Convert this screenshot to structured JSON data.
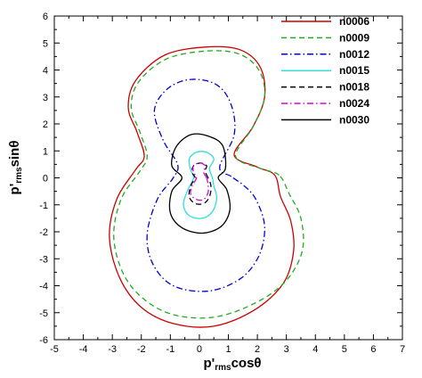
{
  "chart_data": {
    "type": "line",
    "title": "",
    "xlabel": {
      "main": "p'",
      "sub": "rms",
      "tail": "cosθ"
    },
    "ylabel": {
      "main": "p'",
      "sub": "rms",
      "tail": "sinθ"
    },
    "xlim": [
      -5,
      7
    ],
    "ylim": [
      -6,
      6
    ],
    "xticks": [
      "-5",
      "-4",
      "-3",
      "-2",
      "-1",
      "0",
      "1",
      "2",
      "3",
      "4",
      "5",
      "6",
      "7"
    ],
    "yticks": [
      "-6",
      "-5",
      "-4",
      "-3",
      "-2",
      "-1",
      "0",
      "1",
      "2",
      "3",
      "4",
      "5",
      "6"
    ],
    "grid": false,
    "legend_position": "top-right",
    "series": [
      {
        "name": "n0006",
        "color": "#cc0000",
        "dash": "solid",
        "points": [
          [
            2.6,
            0.1
          ],
          [
            2.0,
            0.4
          ],
          [
            1.2,
            0.85
          ],
          [
            1.85,
            1.9
          ],
          [
            2.25,
            3.0
          ],
          [
            2.1,
            4.1
          ],
          [
            1.4,
            4.75
          ],
          [
            0.2,
            4.85
          ],
          [
            -1.2,
            4.55
          ],
          [
            -2.2,
            3.6
          ],
          [
            -2.45,
            2.6
          ],
          [
            -2.15,
            1.7
          ],
          [
            -1.9,
            0.8
          ],
          [
            -2.2,
            0.3
          ],
          [
            -2.85,
            -0.8
          ],
          [
            -3.1,
            -2.2
          ],
          [
            -2.75,
            -3.7
          ],
          [
            -2.0,
            -4.8
          ],
          [
            -0.9,
            -5.4
          ],
          [
            0.5,
            -5.5
          ],
          [
            1.9,
            -4.9
          ],
          [
            2.9,
            -3.9
          ],
          [
            3.25,
            -2.7
          ],
          [
            3.15,
            -1.6
          ],
          [
            2.8,
            -0.7
          ],
          [
            2.6,
            0.1
          ]
        ]
      },
      {
        "name": "n0009",
        "color": "#22aa22",
        "dash": "6,4",
        "points": [
          [
            2.75,
            0.1
          ],
          [
            2.1,
            0.35
          ],
          [
            1.25,
            0.8
          ],
          [
            1.85,
            1.9
          ],
          [
            2.25,
            3.0
          ],
          [
            2.05,
            4.0
          ],
          [
            1.35,
            4.6
          ],
          [
            0.2,
            4.7
          ],
          [
            -1.15,
            4.4
          ],
          [
            -2.1,
            3.55
          ],
          [
            -2.35,
            2.6
          ],
          [
            -2.05,
            1.7
          ],
          [
            -1.8,
            0.8
          ],
          [
            -2.05,
            0.25
          ],
          [
            -2.7,
            -0.8
          ],
          [
            -2.95,
            -2.2
          ],
          [
            -2.6,
            -3.6
          ],
          [
            -1.85,
            -4.55
          ],
          [
            -0.8,
            -5.1
          ],
          [
            0.6,
            -5.15
          ],
          [
            2.0,
            -4.6
          ],
          [
            3.0,
            -3.8
          ],
          [
            3.55,
            -2.7
          ],
          [
            3.5,
            -1.5
          ],
          [
            3.1,
            -0.6
          ],
          [
            2.75,
            0.1
          ]
        ]
      },
      {
        "name": "n0012",
        "color": "#0000cc",
        "dash": "7,3,1.5,3",
        "points": [
          [
            1.1,
            0.05
          ],
          [
            0.7,
            0.4
          ],
          [
            1.2,
            1.6
          ],
          [
            1.1,
            2.7
          ],
          [
            0.6,
            3.45
          ],
          [
            -0.3,
            3.65
          ],
          [
            -1.1,
            3.3
          ],
          [
            -1.55,
            2.5
          ],
          [
            -1.25,
            1.4
          ],
          [
            -0.75,
            0.5
          ],
          [
            -0.9,
            0.0
          ],
          [
            -1.45,
            -0.8
          ],
          [
            -1.8,
            -2.1
          ],
          [
            -1.6,
            -3.2
          ],
          [
            -0.9,
            -4.0
          ],
          [
            0.3,
            -4.2
          ],
          [
            1.4,
            -3.75
          ],
          [
            2.05,
            -2.9
          ],
          [
            2.25,
            -1.8
          ],
          [
            1.95,
            -0.8
          ],
          [
            1.55,
            -0.3
          ],
          [
            1.1,
            0.05
          ]
        ]
      },
      {
        "name": "n0015",
        "color": "#33dddd",
        "dash": "solid",
        "points": [
          [
            0.45,
            0.0
          ],
          [
            0.35,
            0.35
          ],
          [
            0.5,
            0.7
          ],
          [
            0.25,
            0.95
          ],
          [
            -0.1,
            0.95
          ],
          [
            -0.35,
            0.7
          ],
          [
            -0.3,
            0.3
          ],
          [
            -0.2,
            0.0
          ],
          [
            -0.4,
            -0.45
          ],
          [
            -0.55,
            -1.0
          ],
          [
            -0.35,
            -1.4
          ],
          [
            0.1,
            -1.5
          ],
          [
            0.45,
            -1.25
          ],
          [
            0.6,
            -0.75
          ],
          [
            0.5,
            -0.3
          ],
          [
            0.45,
            0.0
          ]
        ]
      },
      {
        "name": "n0018",
        "color": "#000000",
        "dash": "6,4",
        "points": [
          [
            0.3,
            0.0
          ],
          [
            0.2,
            0.25
          ],
          [
            0.25,
            0.45
          ],
          [
            0.05,
            0.55
          ],
          [
            -0.2,
            0.45
          ],
          [
            -0.25,
            0.2
          ],
          [
            -0.15,
            0.0
          ],
          [
            -0.3,
            -0.3
          ],
          [
            -0.35,
            -0.7
          ],
          [
            -0.15,
            -0.95
          ],
          [
            0.15,
            -0.95
          ],
          [
            0.35,
            -0.7
          ],
          [
            0.4,
            -0.3
          ],
          [
            0.3,
            0.0
          ]
        ]
      },
      {
        "name": "n0024",
        "color": "#dd00dd",
        "dash": "7,3,1.5,3",
        "points": [
          [
            0.25,
            0.0
          ],
          [
            0.15,
            0.2
          ],
          [
            0.2,
            0.45
          ],
          [
            0.0,
            0.55
          ],
          [
            -0.2,
            0.45
          ],
          [
            -0.2,
            0.2
          ],
          [
            -0.1,
            0.0
          ],
          [
            -0.25,
            -0.3
          ],
          [
            -0.3,
            -0.6
          ],
          [
            -0.1,
            -0.8
          ],
          [
            0.15,
            -0.8
          ],
          [
            0.3,
            -0.55
          ],
          [
            0.3,
            -0.25
          ],
          [
            0.25,
            0.0
          ]
        ]
      },
      {
        "name": "n0030",
        "color": "#000000",
        "dash": "solid",
        "points": [
          [
            0.65,
            0.0
          ],
          [
            0.9,
            0.35
          ],
          [
            0.8,
            1.2
          ],
          [
            0.3,
            1.55
          ],
          [
            -0.3,
            1.6
          ],
          [
            -0.8,
            1.15
          ],
          [
            -0.95,
            0.45
          ],
          [
            -0.6,
            0.0
          ],
          [
            -0.95,
            -0.5
          ],
          [
            -1.0,
            -1.3
          ],
          [
            -0.6,
            -1.85
          ],
          [
            0.1,
            -2.05
          ],
          [
            0.75,
            -1.8
          ],
          [
            1.05,
            -1.2
          ],
          [
            0.95,
            -0.45
          ],
          [
            0.65,
            0.0
          ]
        ]
      }
    ]
  }
}
